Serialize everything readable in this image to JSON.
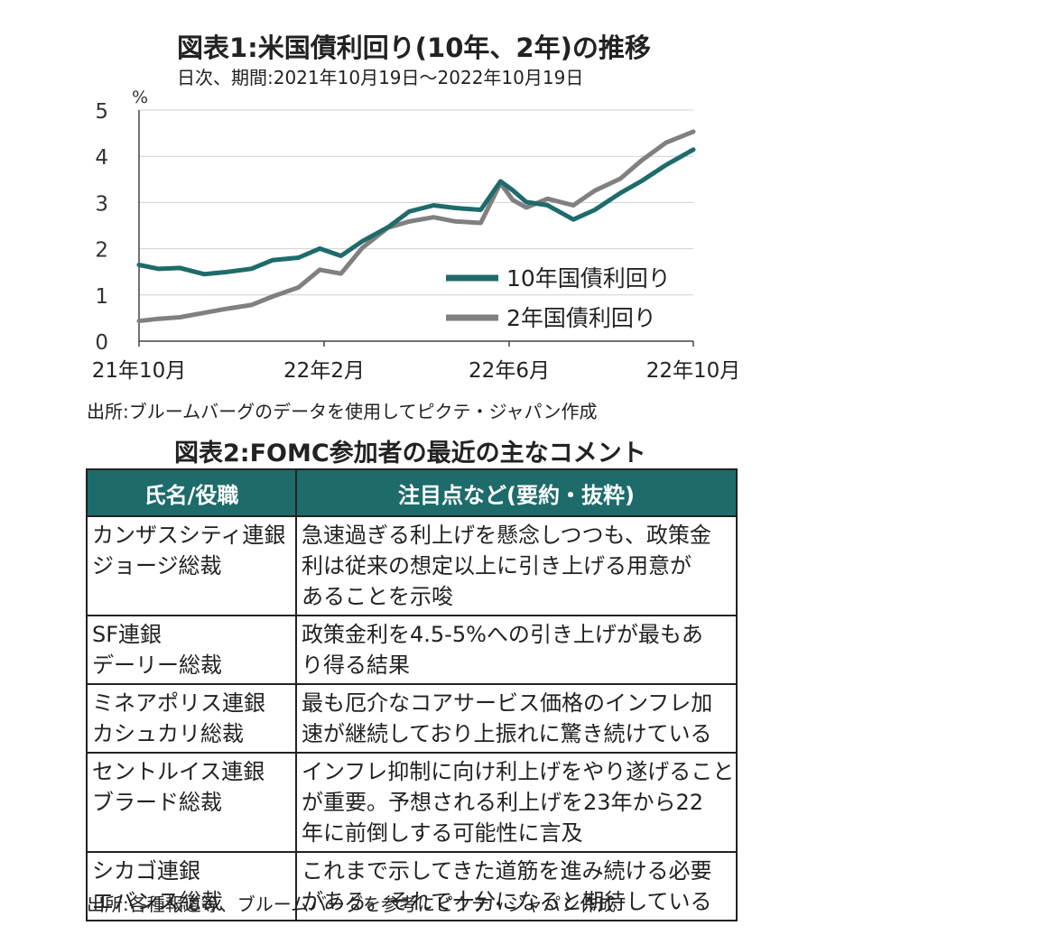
{
  "chart_title": "図表1:米国債利回り(10年、2年)の推移",
  "chart_subtitle": "日次、期間:2021年10月19日〜2022年10月19日",
  "chart_source": "出所:ブルームバーグのデータを使用してピクテ・ジャパン作成",
  "chart_data": {
    "type": "line",
    "title": "図表1:米国債利回り(10年、2年)の推移",
    "subtitle": "日次、期間:2021年10月19日〜2022年10月19日",
    "ylabel": "%",
    "ylim": [
      0,
      5
    ],
    "yticks": [
      "0",
      "1",
      "2",
      "3",
      "4",
      "5"
    ],
    "xticks": [
      "21年10月",
      "22年2月",
      "22年6月",
      "22年10月"
    ],
    "grid": true,
    "legend_position": "bottom-right",
    "x": [
      "2021-10-19",
      "2021-11-01",
      "2021-11-15",
      "2021-12-01",
      "2021-12-15",
      "2022-01-01",
      "2022-01-15",
      "2022-02-01",
      "2022-02-15",
      "2022-03-01",
      "2022-03-15",
      "2022-04-01",
      "2022-04-15",
      "2022-05-01",
      "2022-05-15",
      "2022-06-01",
      "2022-06-14",
      "2022-06-22",
      "2022-07-01",
      "2022-07-15",
      "2022-08-01",
      "2022-08-15",
      "2022-09-01",
      "2022-09-15",
      "2022-10-01",
      "2022-10-19"
    ],
    "series": [
      {
        "name": "10年国債利回り",
        "color": "#1e6b6b",
        "values": [
          1.65,
          1.58,
          1.6,
          1.45,
          1.48,
          1.55,
          1.75,
          1.82,
          2.02,
          1.85,
          2.15,
          2.45,
          2.8,
          2.95,
          2.9,
          2.85,
          3.45,
          3.25,
          3.0,
          2.95,
          2.65,
          2.85,
          3.2,
          3.45,
          3.8,
          4.15
        ]
      },
      {
        "name": "2年国債利回り",
        "color": "#808080",
        "values": [
          0.45,
          0.5,
          0.52,
          0.6,
          0.68,
          0.78,
          0.98,
          1.18,
          1.55,
          1.45,
          2.0,
          2.45,
          2.6,
          2.7,
          2.6,
          2.55,
          3.4,
          3.05,
          2.9,
          3.1,
          2.95,
          3.25,
          3.5,
          3.9,
          4.3,
          4.55
        ]
      }
    ]
  },
  "table_title": "図表2:FOMC参加者の最近の主なコメント",
  "table_headers": [
    "氏名/役職",
    "注目点など(要約・抜粋)"
  ],
  "table_rows": [
    {
      "name": [
        "カンザスシティ連銀",
        "ジョージ総裁"
      ],
      "comment": [
        "急速過ぎる利上げを懸念しつつも、政策金",
        "利は従来の想定以上に引き上げる用意が",
        "あることを示唆"
      ]
    },
    {
      "name": [
        "SF連銀",
        "デーリー総裁"
      ],
      "comment": [
        "政策金利を4.5-5%への引き上げが最もあ",
        "り得る結果"
      ]
    },
    {
      "name": [
        "ミネアポリス連銀",
        "カシュカリ総裁"
      ],
      "comment": [
        "最も厄介なコアサービス価格のインフレ加",
        "速が継続しており上振れに驚き続けている"
      ]
    },
    {
      "name": [
        "セントルイス連銀",
        "ブラード総裁"
      ],
      "comment": [
        "インフレ抑制に向け利上げをやり遂げること",
        "が重要。予想される利上げを23年から22",
        "年に前倒しする可能性に言及"
      ]
    },
    {
      "name": [
        "シカゴ連銀",
        "エバンス総裁"
      ],
      "comment": [
        "これまで示してきた道筋を進み続ける必要",
        "がある。それで十分になると期待している"
      ]
    }
  ],
  "table_source": "出所:各種報道等、ブルームバーグを参考にピクテ・ジャパン作成"
}
